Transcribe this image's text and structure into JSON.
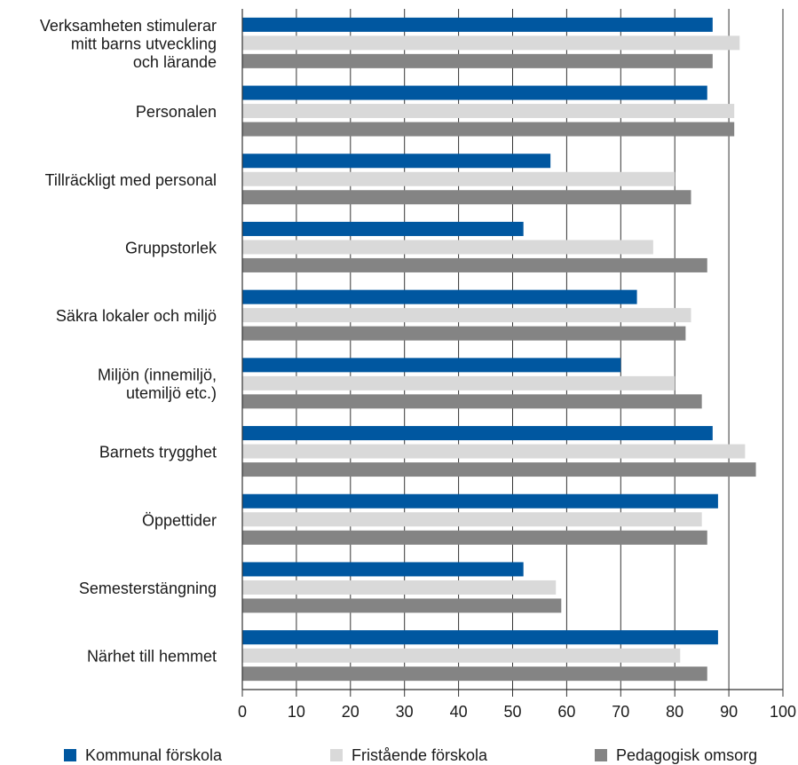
{
  "chart_data": {
    "type": "bar",
    "orientation": "horizontal",
    "categories": [
      "Verksamheten stimulerar mitt barns utveckling och lärande",
      "Personalen",
      "Tillräckligt med personal",
      "Gruppstorlek",
      "Säkra lokaler och miljö",
      "Miljön (innemiljö, utemiljö etc.)",
      "Barnets trygghet",
      "Öppettider",
      "Semesterstängning",
      "Närhet till hemmet"
    ],
    "category_lines": [
      [
        "Verksamheten stimulerar",
        "mitt barns utveckling",
        "och lärande"
      ],
      [
        "Personalen"
      ],
      [
        "Tillräckligt med personal"
      ],
      [
        "Gruppstorlek"
      ],
      [
        "Säkra lokaler och miljö"
      ],
      [
        "Miljön (innemiljö,",
        "utemiljö etc.)"
      ],
      [
        "Barnets trygghet"
      ],
      [
        "Öppettider"
      ],
      [
        "Semesterstängning"
      ],
      [
        "Närhet till hemmet"
      ]
    ],
    "series": [
      {
        "name": "Kommunal förskola",
        "color": "#0057a0",
        "values": [
          87,
          86,
          57,
          52,
          73,
          70,
          87,
          88,
          52,
          88
        ]
      },
      {
        "name": "Fristående förskola",
        "color": "#d9d9d9",
        "values": [
          92,
          91,
          80,
          76,
          83,
          80,
          93,
          85,
          58,
          81
        ]
      },
      {
        "name": "Pedagogisk omsorg",
        "color": "#848484",
        "values": [
          87,
          91,
          83,
          86,
          82,
          85,
          95,
          86,
          59,
          86
        ]
      }
    ],
    "xlim": [
      0,
      100
    ],
    "xticks": [
      "0",
      "10",
      "20",
      "30",
      "40",
      "50",
      "60",
      "70",
      "80",
      "90",
      "100"
    ],
    "grid": true,
    "legend_position": "bottom",
    "title": "",
    "xlabel": "",
    "ylabel": ""
  }
}
